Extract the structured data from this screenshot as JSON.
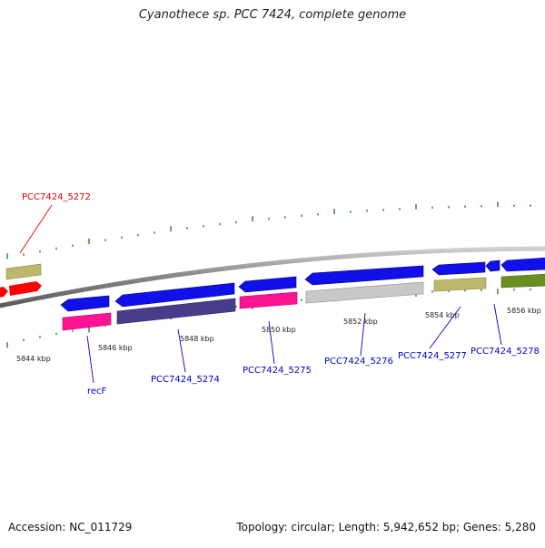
{
  "title": "Cyanothece sp. PCC 7424, complete genome",
  "footer": {
    "accession": "Accession: NC_011729",
    "summary": "Topology: circular; Length: 5,942,652 bp; Genes: 5,280"
  },
  "colors": {
    "red": "#ff0000",
    "blue": "#0000ee",
    "khaki": "#bdb76b",
    "pink": "#ff1493",
    "slate": "#483d8b",
    "silver": "#bdbdbd",
    "olive": "#6b8e23",
    "tick": "#2e8b2e",
    "backbone": "#8a8a8a",
    "label_red": "#dd0000",
    "label_blue": "#0000cc"
  },
  "position_labels": [
    "5844 kbp",
    "5846 kbp",
    "5848 kbp",
    "5850 kbp",
    "5852 kbp",
    "5854 kbp",
    "5856 kbp"
  ],
  "gene_labels": [
    "PCC7424_5272",
    "recF",
    "PCC7424_5274",
    "PCC7424_5275",
    "PCC7424_5276",
    "PCC7424_5277",
    "PCC7424_5278"
  ]
}
